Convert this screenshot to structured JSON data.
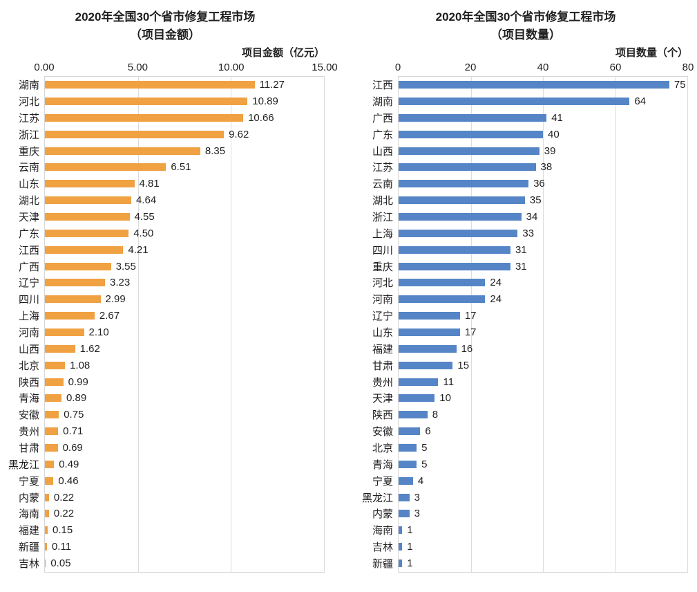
{
  "chart_data": [
    {
      "type": "bar",
      "orientation": "horizontal",
      "title_line1": "2020年全国30个省市修复工程市场",
      "title_line2": "（项目金额）",
      "axis_title": "项目金额（亿元）",
      "bar_color": "#f0a142",
      "grid": true,
      "legend": "none",
      "xlim": [
        0,
        15
      ],
      "x_ticks": [
        "0.00",
        "5.00",
        "10.00",
        "15.00"
      ],
      "categories": [
        "湖南",
        "河北",
        "江苏",
        "浙江",
        "重庆",
        "云南",
        "山东",
        "湖北",
        "天津",
        "广东",
        "江西",
        "广西",
        "辽宁",
        "四川",
        "上海",
        "河南",
        "山西",
        "北京",
        "陕西",
        "青海",
        "安徽",
        "贵州",
        "甘肃",
        "黑龙江",
        "宁夏",
        "内蒙",
        "海南",
        "福建",
        "新疆",
        "吉林"
      ],
      "values": [
        11.27,
        10.89,
        10.66,
        9.62,
        8.35,
        6.51,
        4.81,
        4.64,
        4.55,
        4.5,
        4.21,
        3.55,
        3.23,
        2.99,
        2.67,
        2.1,
        1.62,
        1.08,
        0.99,
        0.89,
        0.75,
        0.71,
        0.69,
        0.49,
        0.46,
        0.22,
        0.22,
        0.15,
        0.11,
        0.05
      ],
      "value_labels": [
        "11.27",
        "10.89",
        "10.66",
        "9.62",
        "8.35",
        "6.51",
        "4.81",
        "4.64",
        "4.55",
        "4.50",
        "4.21",
        "3.55",
        "3.23",
        "2.99",
        "2.67",
        "2.10",
        "1.62",
        "1.08",
        "0.99",
        "0.89",
        "0.75",
        "0.71",
        "0.69",
        "0.49",
        "0.46",
        "0.22",
        "0.22",
        "0.15",
        "0.11",
        "0.05"
      ]
    },
    {
      "type": "bar",
      "orientation": "horizontal",
      "title_line1": "2020年全国30个省市修复工程市场",
      "title_line2": "（项目数量）",
      "axis_title": "项目数量（个）",
      "bar_color": "#5585c6",
      "grid": true,
      "legend": "none",
      "xlim": [
        0,
        80
      ],
      "x_ticks": [
        "0",
        "20",
        "40",
        "60",
        "80"
      ],
      "categories": [
        "江西",
        "湖南",
        "广西",
        "广东",
        "山西",
        "江苏",
        "云南",
        "湖北",
        "浙江",
        "上海",
        "四川",
        "重庆",
        "河北",
        "河南",
        "辽宁",
        "山东",
        "福建",
        "甘肃",
        "贵州",
        "天津",
        "陕西",
        "安徽",
        "北京",
        "青海",
        "宁夏",
        "黑龙江",
        "内蒙",
        "海南",
        "吉林",
        "新疆"
      ],
      "values": [
        75,
        64,
        41,
        40,
        39,
        38,
        36,
        35,
        34,
        33,
        31,
        31,
        24,
        24,
        17,
        17,
        16,
        15,
        11,
        10,
        8,
        6,
        5,
        5,
        4,
        3,
        3,
        1,
        1,
        1
      ],
      "value_labels": [
        "75",
        "64",
        "41",
        "40",
        "39",
        "38",
        "36",
        "35",
        "34",
        "33",
        "31",
        "31",
        "24",
        "24",
        "17",
        "17",
        "16",
        "15",
        "11",
        "10",
        "8",
        "6",
        "5",
        "5",
        "4",
        "3",
        "3",
        "1",
        "1",
        "1"
      ]
    }
  ],
  "colors": {
    "amount_bar": "#f0a142",
    "count_bar": "#5585c6",
    "gridline": "#dcdcdc",
    "text": "#1f1f1f"
  }
}
